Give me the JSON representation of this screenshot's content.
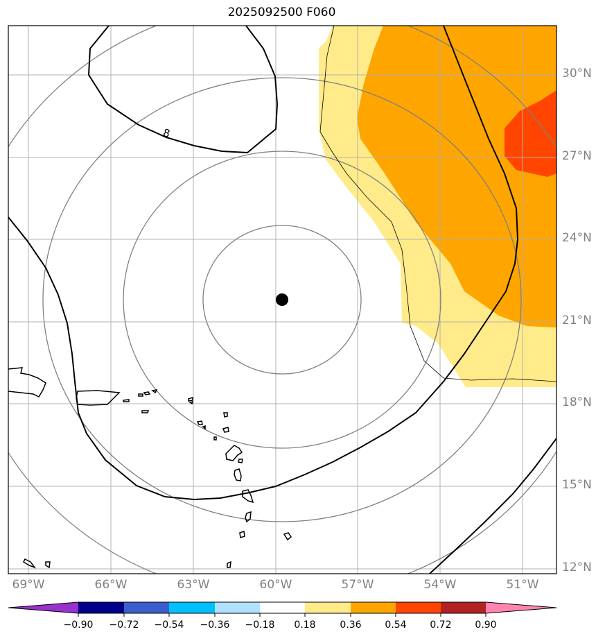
{
  "title": "2025092500 F060",
  "map": {
    "lat_labels": [
      "30°N",
      "27°N",
      "24°N",
      "21°N",
      "18°N",
      "15°N",
      "12°N"
    ],
    "lon_labels": [
      "69°W",
      "66°W",
      "63°W",
      "60°W",
      "57°W",
      "54°W",
      "51°W"
    ],
    "storm_center": {
      "lat": 21.8,
      "lon": -59.8
    },
    "contour_label": "8",
    "grid": true
  },
  "colorbar": {
    "ticks": [
      "−0.90",
      "−0.72",
      "−0.54",
      "−0.36",
      "−0.18",
      "0.18",
      "0.36",
      "0.54",
      "0.72",
      "0.90"
    ],
    "colors": [
      "#9932cc",
      "#00008b",
      "#3a5fcd",
      "#00bfff",
      "#b0e2ff",
      "#ffffff",
      "#ffeb8a",
      "#ffa500",
      "#ff4500",
      "#b22222",
      "#ff85b0"
    ],
    "extend": "both"
  }
}
